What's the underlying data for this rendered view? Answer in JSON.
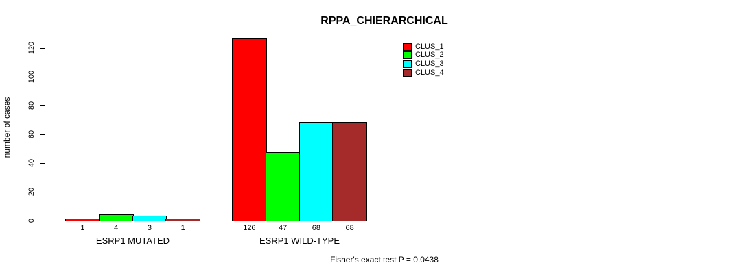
{
  "title": "RPPA_CHIERARCHICAL",
  "footer": "Fisher's exact test P = 0.0438",
  "chart_data": {
    "type": "bar",
    "title": "RPPA_CHIERARCHICAL",
    "xlabel": "",
    "ylabel": "number of cases",
    "ylim": [
      0,
      126
    ],
    "yticks": [
      0,
      20,
      40,
      60,
      80,
      100,
      120
    ],
    "grid": false,
    "categories": [
      "ESRP1 MUTATED",
      "ESRP1 WILD-TYPE"
    ],
    "series": [
      {
        "name": "CLUS_1",
        "color": "#FF0000",
        "values": [
          1,
          126
        ]
      },
      {
        "name": "CLUS_2",
        "color": "#00FF00",
        "values": [
          4,
          47
        ]
      },
      {
        "name": "CLUS_3",
        "color": "#00FFFF",
        "values": [
          3,
          68
        ]
      },
      {
        "name": "CLUS_4",
        "color": "#A52A2A",
        "values": [
          1,
          68
        ]
      }
    ],
    "values_shown_under_bars": true,
    "legend_position": "top-right",
    "annotation": "Fisher's exact test P = 0.0438"
  }
}
